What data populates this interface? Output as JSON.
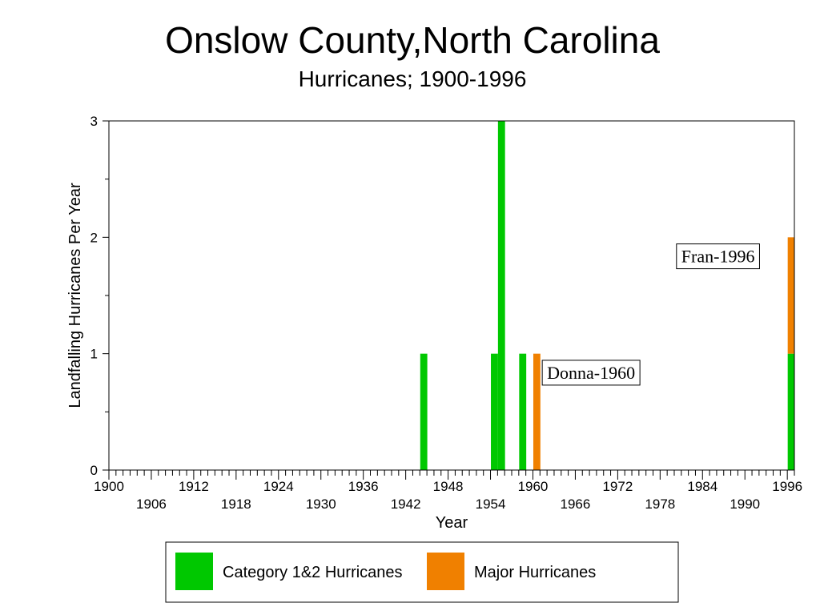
{
  "chart_data": {
    "type": "bar",
    "stacked": true,
    "title": "Onslow County,North Carolina",
    "subtitle": "Hurricanes;  1900-1996",
    "xlabel": "Year",
    "ylabel": "Landfalling Hurricanes Per Year",
    "xlim": [
      1900,
      1996
    ],
    "ylim": [
      0,
      3
    ],
    "x_tick_labels_upper": [
      "1900",
      "1912",
      "1924",
      "1936",
      "1948",
      "1960",
      "1972",
      "1984",
      "1996"
    ],
    "x_tick_labels_lower": [
      "1906",
      "1918",
      "1930",
      "1942",
      "1954",
      "1966",
      "1978",
      "1990"
    ],
    "y_tick_labels": [
      "0",
      "1",
      "2",
      "3"
    ],
    "series": [
      {
        "name": "Category 1&2 Hurricanes",
        "color": "#00c800",
        "points": [
          {
            "x": 1944,
            "y": 1
          },
          {
            "x": 1954,
            "y": 1
          },
          {
            "x": 1955,
            "y": 3
          },
          {
            "x": 1958,
            "y": 1
          },
          {
            "x": 1996,
            "y": 1
          }
        ]
      },
      {
        "name": "Major Hurricanes",
        "color": "#f08000",
        "points": [
          {
            "x": 1960,
            "y": 1
          },
          {
            "x": 1996,
            "y": 1
          }
        ]
      }
    ],
    "annotations": [
      {
        "text": "Donna-1960",
        "x": 1962,
        "y": 0.84
      },
      {
        "text": "Fran-1996",
        "x": 1981,
        "y": 1.84
      }
    ],
    "legend_position": "bottom"
  }
}
